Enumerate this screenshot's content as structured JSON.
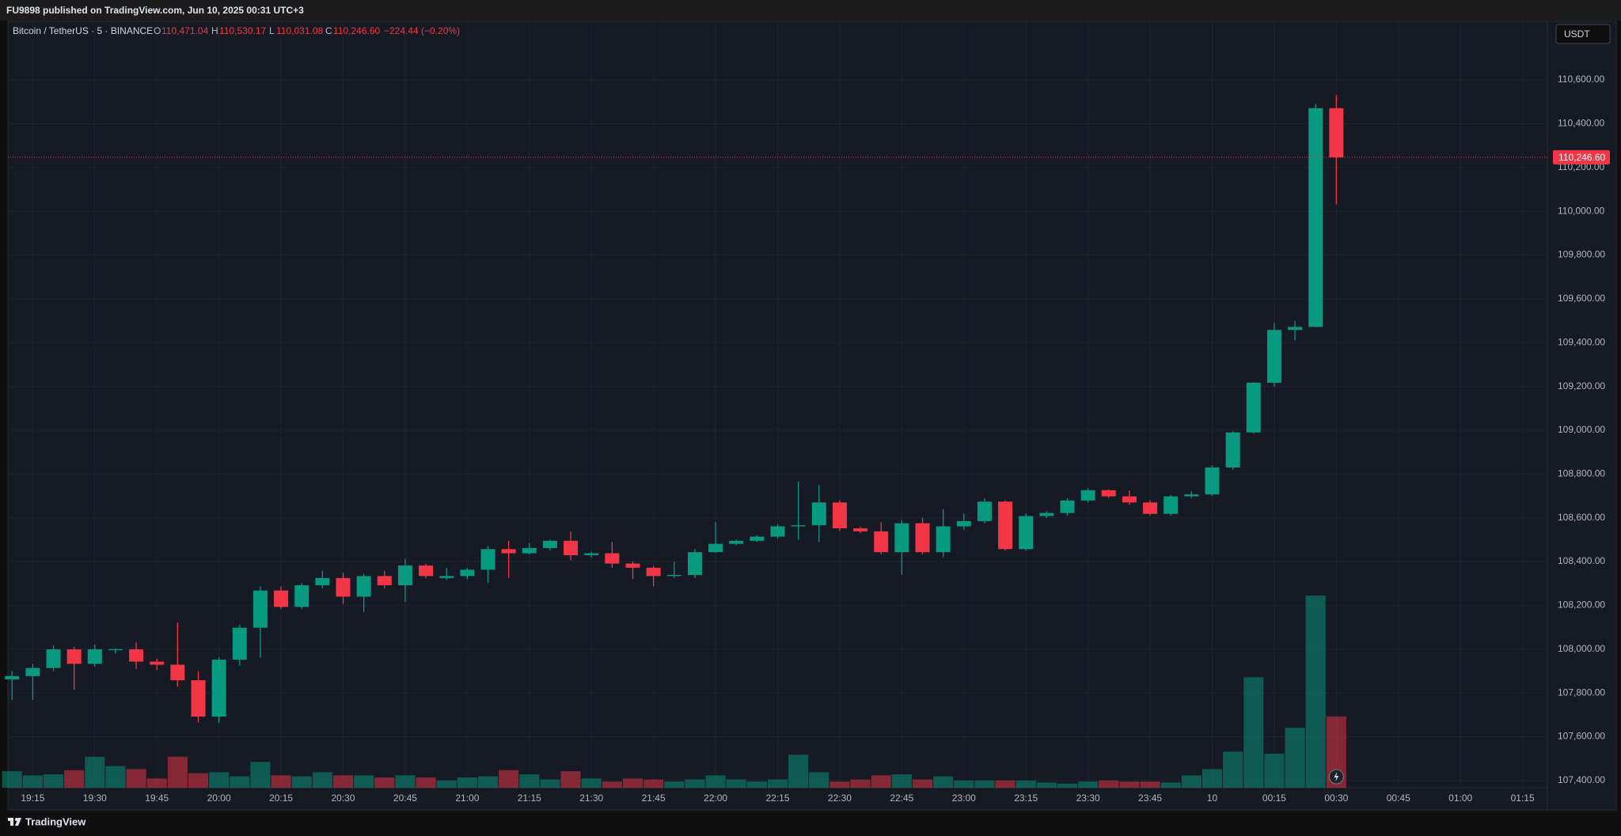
{
  "header": {
    "published": "FU9898 published on TradingView.com, Jun 10, 2025 00:31 UTC+3"
  },
  "legend": {
    "symbol": "Bitcoin / TetherUS · 5 · BINANCE",
    "o": "O",
    "open": "110,471.04",
    "h": "H",
    "high": "110,530.17",
    "l": "L",
    "low": "110,031.08",
    "c": "C",
    "close": "110,246.60",
    "change": "−224.44 (−0.20%)"
  },
  "currency": "USDT",
  "footer": {
    "brand": "TradingView"
  },
  "chart_data": {
    "type": "candlestick",
    "up_color": "#089981",
    "down_color": "#f23645",
    "grid": true,
    "x": [
      "19:10",
      "19:15",
      "19:20",
      "19:25",
      "19:30",
      "19:35",
      "19:40",
      "19:45",
      "19:50",
      "19:55",
      "20:00",
      "20:05",
      "20:10",
      "20:15",
      "20:20",
      "20:25",
      "20:30",
      "20:35",
      "20:40",
      "20:45",
      "20:50",
      "20:55",
      "21:00",
      "21:05",
      "21:10",
      "21:15",
      "21:20",
      "21:25",
      "21:30",
      "21:35",
      "21:40",
      "21:45",
      "21:50",
      "21:55",
      "22:00",
      "22:05",
      "22:10",
      "22:15",
      "22:20",
      "22:25",
      "22:30",
      "22:35",
      "22:40",
      "22:45",
      "22:50",
      "22:55",
      "23:00",
      "23:05",
      "23:10",
      "23:15",
      "23:20",
      "23:25",
      "23:30",
      "23:35",
      "23:40",
      "23:45",
      "23:50",
      "23:55",
      "00:00",
      "00:05",
      "00:10",
      "00:15",
      "00:20",
      "00:25",
      "00:30"
    ],
    "open": [
      107862,
      107877,
      107914,
      107999,
      107933,
      107999,
      107999,
      107943,
      107929,
      107858,
      107692,
      107952,
      108098,
      108268,
      108193,
      108292,
      108325,
      108240,
      108334,
      108292,
      108382,
      108325,
      108334,
      108363,
      108457,
      108438,
      108462,
      108495,
      108429,
      108438,
      108391,
      108372,
      108334,
      108339,
      108443,
      108481,
      108495,
      108514,
      108561,
      108566,
      108670,
      108552,
      108538,
      108443,
      108575,
      108443,
      108561,
      108585,
      108674,
      108457,
      108608,
      108622,
      108679,
      108726,
      108698,
      108670,
      108618,
      108698,
      108707,
      108830,
      108990,
      109217,
      109458,
      109472,
      110471.04
    ],
    "high": [
      107900,
      107933,
      108018,
      108010,
      108020,
      108004,
      108032,
      107957,
      108122,
      107900,
      107962,
      108112,
      108287,
      108287,
      108302,
      108358,
      108349,
      108344,
      108358,
      108414,
      108391,
      108372,
      108372,
      108471,
      108495,
      108485,
      108500,
      108538,
      108445,
      108490,
      108400,
      108380,
      108400,
      108457,
      108580,
      108500,
      108520,
      108570,
      108764,
      108750,
      108680,
      108560,
      108580,
      108590,
      108600,
      108640,
      108620,
      108690,
      108680,
      108620,
      108630,
      108690,
      108735,
      108730,
      108725,
      108680,
      108705,
      108720,
      108840,
      108995,
      109220,
      109490,
      109500,
      110490,
      110530.17
    ],
    "low": [
      107768,
      107768,
      107900,
      107815,
      107920,
      107980,
      107910,
      107905,
      107829,
      107664,
      107664,
      107924,
      107962,
      108183,
      108183,
      108278,
      108207,
      108169,
      108278,
      108216,
      108325,
      108316,
      108320,
      108302,
      108325,
      108433,
      108450,
      108405,
      108420,
      108372,
      108320,
      108287,
      108325,
      108325,
      108440,
      108475,
      108490,
      108505,
      108500,
      108490,
      108540,
      108530,
      108433,
      108340,
      108433,
      108420,
      108545,
      108575,
      108450,
      108450,
      108600,
      108610,
      108670,
      108690,
      108660,
      108610,
      108610,
      108690,
      108700,
      108820,
      108985,
      109200,
      109410,
      109470,
      110031.08
    ],
    "close": [
      107877,
      107914,
      107999,
      107933,
      107999,
      108000,
      107943,
      107929,
      107858,
      107692,
      107952,
      108098,
      108268,
      108193,
      108292,
      108325,
      108240,
      108334,
      108292,
      108382,
      108334,
      108334,
      108363,
      108457,
      108438,
      108462,
      108495,
      108429,
      108438,
      108391,
      108372,
      108334,
      108339,
      108443,
      108481,
      108495,
      108514,
      108561,
      108566,
      108670,
      108552,
      108538,
      108443,
      108575,
      108443,
      108561,
      108585,
      108674,
      108457,
      108608,
      108622,
      108679,
      108726,
      108698,
      108670,
      108618,
      108698,
      108707,
      108830,
      108990,
      109217,
      109458,
      109472,
      110471.04,
      110246.6
    ],
    "volume": [
      16,
      12,
      13,
      17,
      30,
      21,
      18,
      9,
      30,
      14,
      15,
      11,
      25,
      12,
      11,
      15,
      12,
      12,
      10,
      12,
      10,
      7,
      10,
      11,
      17,
      13,
      8,
      16,
      9,
      6,
      9,
      8,
      6,
      8,
      12,
      8,
      6,
      8,
      32,
      15,
      6,
      8,
      12,
      13,
      8,
      11,
      7,
      7,
      7,
      7,
      5,
      4,
      6,
      7,
      6,
      6,
      5,
      12,
      18,
      35,
      107,
      33,
      58,
      186,
      69
    ],
    "last_price": {
      "value": 110246.6,
      "label": "110,246.60"
    },
    "xlim": [
      "19:09",
      "01:21"
    ],
    "ylim": [
      107367,
      110864
    ],
    "yticks": [
      {
        "value": 107400,
        "label": "107,400.00"
      },
      {
        "value": 107600,
        "label": "107,600.00"
      },
      {
        "value": 107800,
        "label": "107,800.00"
      },
      {
        "value": 108000,
        "label": "108,000.00"
      },
      {
        "value": 108200,
        "label": "108,200.00"
      },
      {
        "value": 108400,
        "label": "108,400.00"
      },
      {
        "value": 108600,
        "label": "108,600.00"
      },
      {
        "value": 108800,
        "label": "108,800.00"
      },
      {
        "value": 109000,
        "label": "109,000.00"
      },
      {
        "value": 109200,
        "label": "109,200.00"
      },
      {
        "value": 109400,
        "label": "109,400.00"
      },
      {
        "value": 109600,
        "label": "109,600.00"
      },
      {
        "value": 109800,
        "label": "109,800.00"
      },
      {
        "value": 110000,
        "label": "110,000.00"
      },
      {
        "value": 110200,
        "label": "110,200.00"
      },
      {
        "value": 110400,
        "label": "110,400.00"
      },
      {
        "value": 110600,
        "label": "110,600.00"
      }
    ],
    "xticks": [
      "19:15",
      "19:30",
      "19:45",
      "20:00",
      "20:15",
      "20:30",
      "20:45",
      "21:00",
      "21:15",
      "21:30",
      "21:45",
      "22:00",
      "22:15",
      "22:30",
      "22:45",
      "23:00",
      "23:15",
      "23:30",
      "23:45",
      {
        "value": "00:00",
        "label": "10"
      },
      "00:15",
      "00:30",
      "00:45",
      "01:00",
      "01:15"
    ]
  }
}
